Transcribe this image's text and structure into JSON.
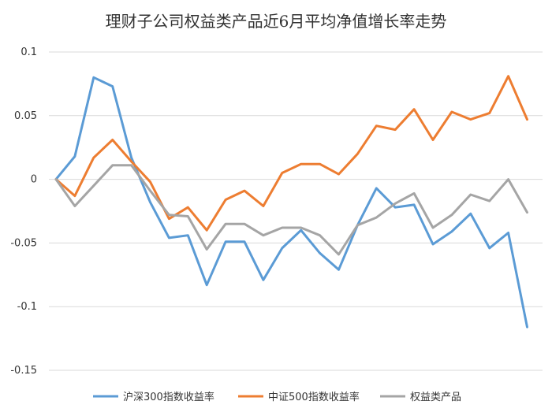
{
  "chart_data": {
    "type": "line",
    "title": "理财子公司权益类产品近6月平均净值增长率走势",
    "xlabel": "",
    "ylabel": "",
    "ylim": [
      -0.15,
      0.1
    ],
    "yticks": [
      0.1,
      0.05,
      0,
      -0.05,
      -0.1,
      -0.15
    ],
    "ytick_labels": [
      "0.1",
      "0.05",
      "0",
      "-0.05",
      "-0.1",
      "-0.15"
    ],
    "grid": true,
    "legend_position": "bottom",
    "x": [
      1,
      2,
      3,
      4,
      5,
      6,
      7,
      8,
      9,
      10,
      11,
      12,
      13,
      14,
      15,
      16,
      17,
      18,
      19,
      20,
      21,
      22,
      23,
      24,
      25,
      26,
      27,
      28
    ],
    "series": [
      {
        "name": "沪深300指数收益率",
        "color": "#5B9BD5",
        "values": [
          0,
          0.018,
          0.08,
          0.073,
          0.017,
          -0.018,
          -0.046,
          -0.044,
          -0.083,
          -0.049,
          -0.049,
          -0.079,
          -0.054,
          -0.04,
          -0.058,
          -0.071,
          -0.036,
          -0.007,
          -0.022,
          -0.02,
          -0.051,
          -0.041,
          -0.027,
          -0.054,
          -0.042,
          -0.116,
          null,
          null
        ]
      },
      {
        "name": "中证500指数收益率",
        "color": "#ED7D31",
        "values": [
          0,
          -0.013,
          0.017,
          0.031,
          0.014,
          -0.002,
          -0.031,
          -0.022,
          -0.04,
          -0.016,
          -0.009,
          -0.021,
          0.005,
          0.012,
          0.012,
          0.004,
          0.02,
          0.042,
          0.039,
          0.055,
          0.031,
          0.053,
          0.047,
          0.052,
          0.081,
          0.047,
          null,
          null
        ]
      },
      {
        "name": "权益类产品",
        "color": "#A5A5A5",
        "values": [
          0,
          -0.021,
          -0.005,
          0.011,
          0.011,
          -0.009,
          -0.028,
          -0.029,
          -0.055,
          -0.035,
          -0.035,
          -0.044,
          -0.038,
          -0.038,
          -0.044,
          -0.059,
          -0.036,
          -0.03,
          -0.019,
          -0.011,
          -0.038,
          -0.028,
          -0.012,
          -0.017,
          0,
          -0.026,
          null,
          null
        ]
      }
    ]
  }
}
